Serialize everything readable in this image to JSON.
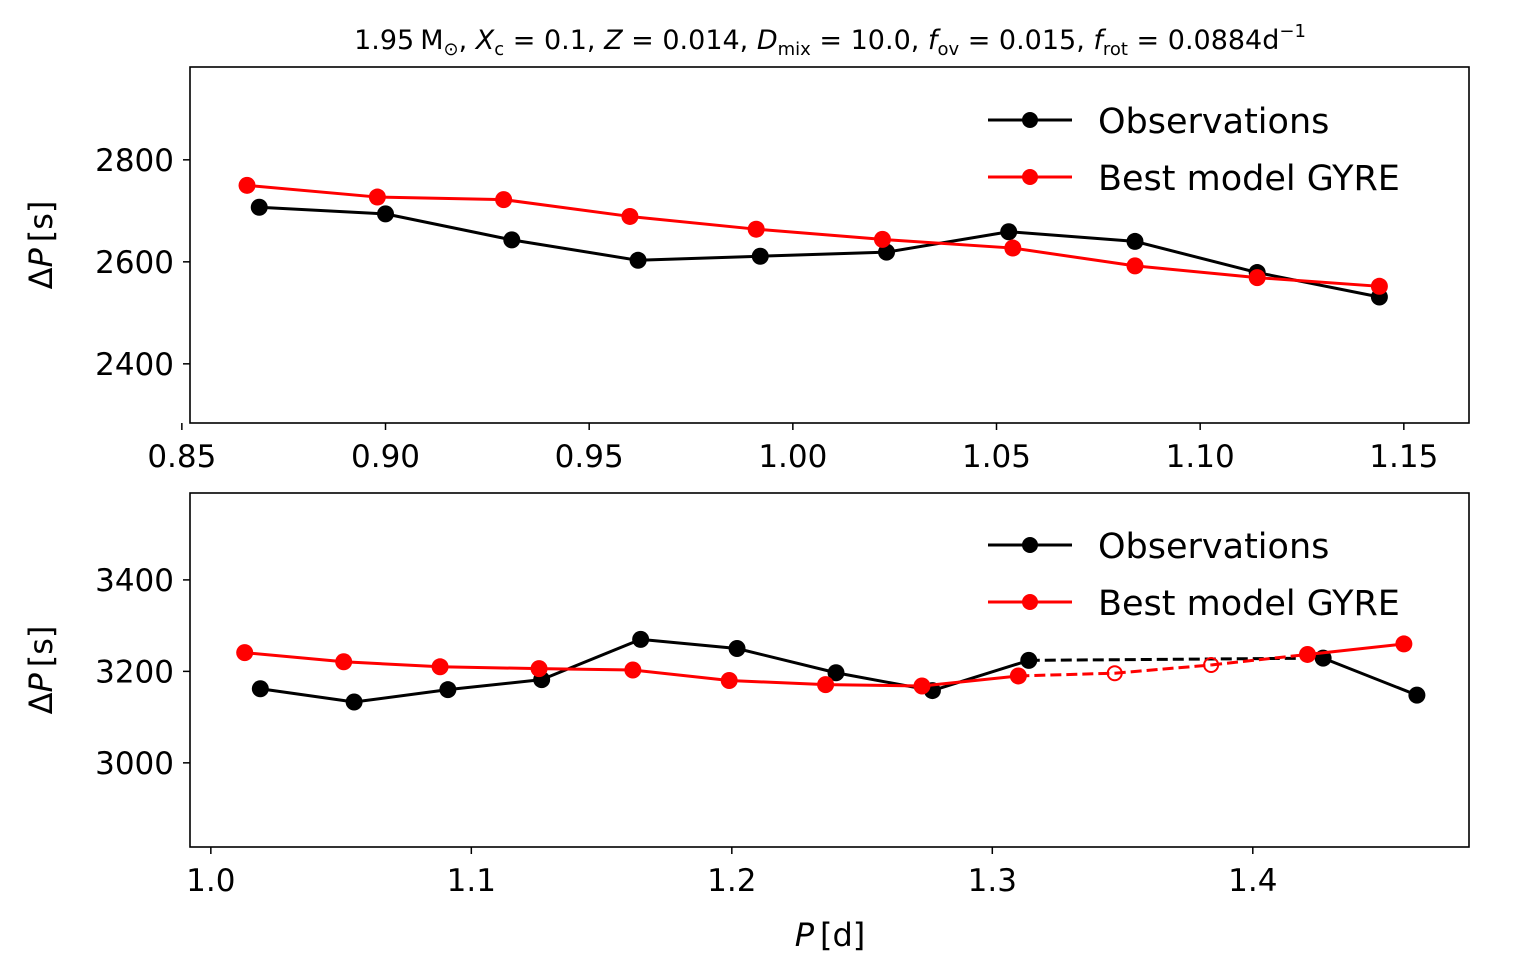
{
  "chart_data": [
    {
      "type": "line",
      "title": "1.95 M⊙ , Xc = 0.1, Z = 0.014, Dmix = 10.0, fov = 0.015, frot = 0.0884d⁻¹",
      "title_parts": {
        "mass": "1.95",
        "mass_unit": "M",
        "sun_symbol": "⊙",
        "xc_sym": "X",
        "xc_sub": "c",
        "xc_val": "0.1",
        "z_sym": "Z",
        "z_val": "0.014",
        "dmix_sym": "D",
        "dmix_sub": "mix",
        "dmix_val": "10.0",
        "fov_sym": "f",
        "fov_sub": "ov",
        "fov_val": "0.015",
        "frot_sym": "f",
        "frot_sub": "rot",
        "frot_val": "0.0884",
        "frot_unit": "d",
        "frot_exp": "−1"
      },
      "xlabel": "",
      "ylabel": "ΔP [s]",
      "ylabel_parts": {
        "delta": "Δ",
        "sym": "P",
        "unit": "[s]"
      },
      "xlim": [
        0.852,
        1.166
      ],
      "ylim": [
        2284,
        2982
      ],
      "xticks": [
        0.85,
        0.9,
        0.95,
        1.0,
        1.05,
        1.1,
        1.15
      ],
      "xtick_labels": [
        "0.85",
        "0.90",
        "0.95",
        "1.00",
        "1.05",
        "1.10",
        "1.15"
      ],
      "yticks": [
        2400,
        2600,
        2800
      ],
      "ytick_labels": [
        "2400",
        "2600",
        "2800"
      ],
      "grid": false,
      "legend_position": "top-right",
      "series": [
        {
          "name": "Observations",
          "color": "#000000",
          "x": [
            0.869,
            0.9,
            0.931,
            0.962,
            0.992,
            1.023,
            1.053,
            1.084,
            1.114,
            1.144
          ],
          "y": [
            2707,
            2694,
            2643,
            2603,
            2611,
            2619,
            2659,
            2640,
            2579,
            2531
          ],
          "dashed_segments": [],
          "hollow_points": []
        },
        {
          "name": "Best model GYRE",
          "color": "#ff0000",
          "x": [
            0.866,
            0.898,
            0.929,
            0.96,
            0.991,
            1.022,
            1.054,
            1.084,
            1.114,
            1.144
          ],
          "y": [
            2750,
            2727,
            2722,
            2689,
            2664,
            2644,
            2627,
            2592,
            2569,
            2552
          ],
          "dashed_segments": [],
          "hollow_points": []
        }
      ]
    },
    {
      "type": "line",
      "title": "",
      "xlabel": "P [d]",
      "xlabel_parts": {
        "sym": "P",
        "unit": "[d]"
      },
      "ylabel": "ΔP [s]",
      "ylabel_parts": {
        "delta": "Δ",
        "sym": "P",
        "unit": "[s]"
      },
      "xlim": [
        0.992,
        1.483
      ],
      "ylim": [
        2816,
        3590
      ],
      "xticks": [
        1.0,
        1.1,
        1.2,
        1.3,
        1.4
      ],
      "xtick_labels": [
        "1.0",
        "1.1",
        "1.2",
        "1.3",
        "1.4"
      ],
      "yticks": [
        3000,
        3200,
        3400
      ],
      "ytick_labels": [
        "3000",
        "3200",
        "3400"
      ],
      "grid": false,
      "legend_position": "top-right",
      "series": [
        {
          "name": "Observations",
          "color": "#000000",
          "x": [
            1.019,
            1.055,
            1.091,
            1.127,
            1.165,
            1.202,
            1.24,
            1.277,
            1.314,
            1.427,
            1.463
          ],
          "y": [
            3162,
            3133,
            3160,
            3182,
            3270,
            3250,
            3197,
            3158,
            3224,
            3229,
            3148
          ],
          "dashed_segments": [
            8
          ],
          "hollow_points": []
        },
        {
          "name": "Best model GYRE",
          "color": "#ff0000",
          "x": [
            1.013,
            1.051,
            1.088,
            1.126,
            1.162,
            1.199,
            1.236,
            1.273,
            1.31,
            1.347,
            1.384,
            1.421,
            1.458
          ],
          "y": [
            3241,
            3221,
            3210,
            3206,
            3203,
            3180,
            3171,
            3168,
            3190,
            3196,
            3214,
            3237,
            3260
          ],
          "dashed_segments": [
            8,
            9,
            10
          ],
          "hollow_points": [
            9,
            10
          ]
        }
      ]
    }
  ]
}
